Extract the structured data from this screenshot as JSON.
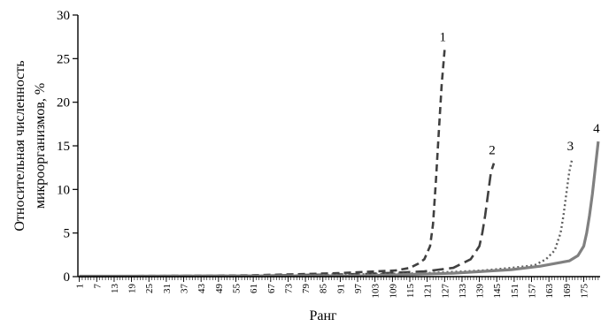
{
  "chart_data": {
    "type": "line",
    "xlabel": "Ранг",
    "ylabel_line1": "Относительная численность",
    "ylabel_line2": "микроорганизмов, %",
    "ylim": [
      0,
      30
    ],
    "yticks": [
      0,
      5,
      10,
      15,
      20,
      25,
      30
    ],
    "xlim": [
      1,
      180
    ],
    "xticks": [
      1,
      7,
      13,
      19,
      25,
      31,
      37,
      43,
      49,
      55,
      61,
      67,
      73,
      79,
      85,
      91,
      97,
      103,
      109,
      115,
      121,
      127,
      133,
      139,
      145,
      151,
      157,
      163,
      169,
      175
    ],
    "grid": false,
    "series": [
      {
        "name": "1",
        "color": "#404040",
        "dash": "8,5",
        "width": 2.6,
        "x": [
          1,
          40,
          60,
          80,
          90,
          100,
          110,
          115,
          118,
          120,
          122,
          123,
          124,
          125,
          126,
          127
        ],
        "y": [
          0.05,
          0.1,
          0.15,
          0.3,
          0.4,
          0.55,
          0.7,
          1.0,
          1.5,
          2.0,
          3.5,
          6.0,
          11.0,
          16.5,
          22.0,
          26.0
        ]
      },
      {
        "name": "2",
        "color": "#404040",
        "dash": "13,6",
        "width": 2.6,
        "x": [
          1,
          60,
          100,
          120,
          130,
          136,
          139,
          140,
          141,
          142,
          143,
          144
        ],
        "y": [
          0.05,
          0.1,
          0.3,
          0.6,
          1.0,
          2.0,
          3.5,
          5.0,
          7.0,
          9.5,
          12.0,
          13.0
        ]
      },
      {
        "name": "3",
        "color": "#606060",
        "dash": "2,3",
        "width": 2.4,
        "x": [
          1,
          80,
          120,
          140,
          150,
          158,
          162,
          165,
          167,
          168,
          169,
          170,
          171
        ],
        "y": [
          0.05,
          0.15,
          0.4,
          0.7,
          1.0,
          1.3,
          2.0,
          3.0,
          5.0,
          7.0,
          9.5,
          12.0,
          13.5
        ]
      },
      {
        "name": "4",
        "color": "#808080",
        "dash": "",
        "width": 3.2,
        "x": [
          1,
          100,
          130,
          150,
          160,
          165,
          170,
          173,
          175,
          176,
          177,
          178,
          179,
          180
        ],
        "y": [
          0.05,
          0.1,
          0.4,
          0.8,
          1.2,
          1.5,
          1.8,
          2.4,
          3.5,
          5.0,
          7.0,
          9.5,
          12.5,
          15.5
        ]
      }
    ]
  }
}
